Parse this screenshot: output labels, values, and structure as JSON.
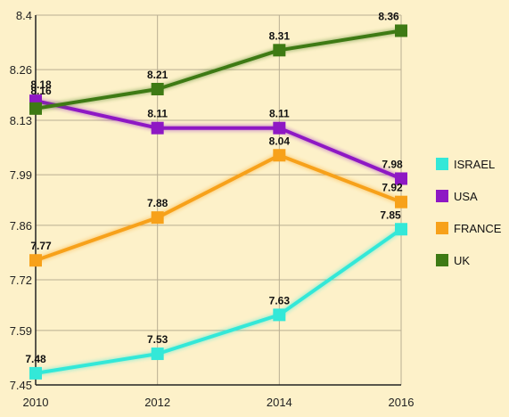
{
  "chart_data": {
    "type": "line",
    "title": "",
    "xlabel": "",
    "ylabel": "",
    "x": [
      2010,
      2012,
      2014,
      2016
    ],
    "ylim": [
      7.45,
      8.4
    ],
    "y_ticks": [
      "7.45",
      "7.59",
      "7.72",
      "7.86",
      "7.99",
      "8.13",
      "8.26",
      "8.4"
    ],
    "x_ticks": [
      "2010",
      "2012",
      "2014",
      "2016"
    ],
    "grid": true,
    "legend_position": "right",
    "background": "#fdf1c9",
    "series": [
      {
        "name": "ISRAEL",
        "color": "#33e8d8",
        "values": [
          7.48,
          7.53,
          7.63,
          7.85
        ],
        "labels": [
          "7.48",
          "7.53",
          "7.63",
          "7.85"
        ]
      },
      {
        "name": "USA",
        "color": "#8e18c4",
        "values": [
          8.18,
          8.11,
          8.11,
          7.98
        ],
        "labels": [
          "8.18",
          "8.11",
          "8.11",
          "7.98"
        ]
      },
      {
        "name": "FRANCE",
        "color": "#f7a11a",
        "values": [
          7.77,
          7.88,
          8.04,
          7.92
        ],
        "labels": [
          "7.77",
          "7.88",
          "8.04",
          "7.92"
        ]
      },
      {
        "name": "UK",
        "color": "#3e7a14",
        "values": [
          8.16,
          8.21,
          8.31,
          8.36
        ],
        "labels": [
          "8.16",
          "8.21",
          "8.31",
          "8.36"
        ]
      }
    ]
  }
}
